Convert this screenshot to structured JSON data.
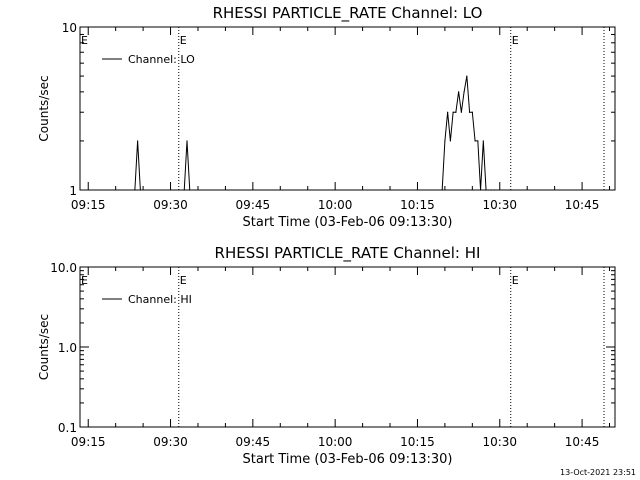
{
  "timestamp": "13-Oct-2021 23:51",
  "chart_data": [
    {
      "type": "line",
      "title": "RHESSI PARTICLE_RATE Channel: LO",
      "xlabel": "Start Time (03-Feb-06 09:13:30)",
      "ylabel": "Counts/sec",
      "y_scale": "log",
      "ylim": [
        1,
        10
      ],
      "xlim": [
        "09:13:30",
        "10:51:00"
      ],
      "y_ticks": [
        "1",
        "10"
      ],
      "x_ticks": [
        "09:15",
        "09:30",
        "09:45",
        "10:00",
        "10:15",
        "10:30",
        "10:45"
      ],
      "legend": {
        "label": "Channel: LO",
        "placement": "top-left"
      },
      "event_lines": [
        {
          "time": "09:31:30",
          "label": "E"
        },
        {
          "time": "10:32:00",
          "label": "E"
        },
        {
          "time": "10:49:00",
          "label": ""
        }
      ],
      "series": [
        {
          "name": "Channel: LO",
          "x": [
            "09:23:30",
            "09:24:00",
            "09:24:30",
            "09:32:30",
            "09:33:00",
            "09:33:30",
            "10:19:30",
            "10:20:00",
            "10:20:30",
            "10:21:00",
            "10:21:30",
            "10:22:00",
            "10:22:30",
            "10:23:00",
            "10:23:30",
            "10:24:00",
            "10:24:30",
            "10:25:00",
            "10:25:30",
            "10:26:00",
            "10:26:30",
            "10:27:00",
            "10:27:30",
            "10:28:00",
            "10:28:30",
            "10:29:00"
          ],
          "y": [
            1,
            2,
            1,
            1,
            2,
            1,
            1,
            2,
            3,
            2,
            3,
            3,
            4,
            3,
            4,
            5,
            3,
            3,
            2,
            2,
            1,
            2,
            1,
            1,
            1,
            1
          ]
        }
      ]
    },
    {
      "type": "line",
      "title": "RHESSI PARTICLE_RATE Channel: HI",
      "xlabel": "Start Time (03-Feb-06 09:13:30)",
      "ylabel": "Counts/sec",
      "y_scale": "log",
      "ylim": [
        0.1,
        10
      ],
      "xlim": [
        "09:13:30",
        "10:51:00"
      ],
      "y_ticks": [
        "0.1",
        "1.0",
        "10.0"
      ],
      "x_ticks": [
        "09:15",
        "09:30",
        "09:45",
        "10:00",
        "10:15",
        "10:30",
        "10:45"
      ],
      "legend": {
        "label": "Channel: HI",
        "placement": "top-left"
      },
      "event_lines": [
        {
          "time": "09:31:30",
          "label": "E"
        },
        {
          "time": "10:32:00",
          "label": "E"
        },
        {
          "time": "10:49:00",
          "label": ""
        }
      ],
      "series": [
        {
          "name": "Channel: HI",
          "x": [],
          "y": []
        }
      ]
    }
  ]
}
